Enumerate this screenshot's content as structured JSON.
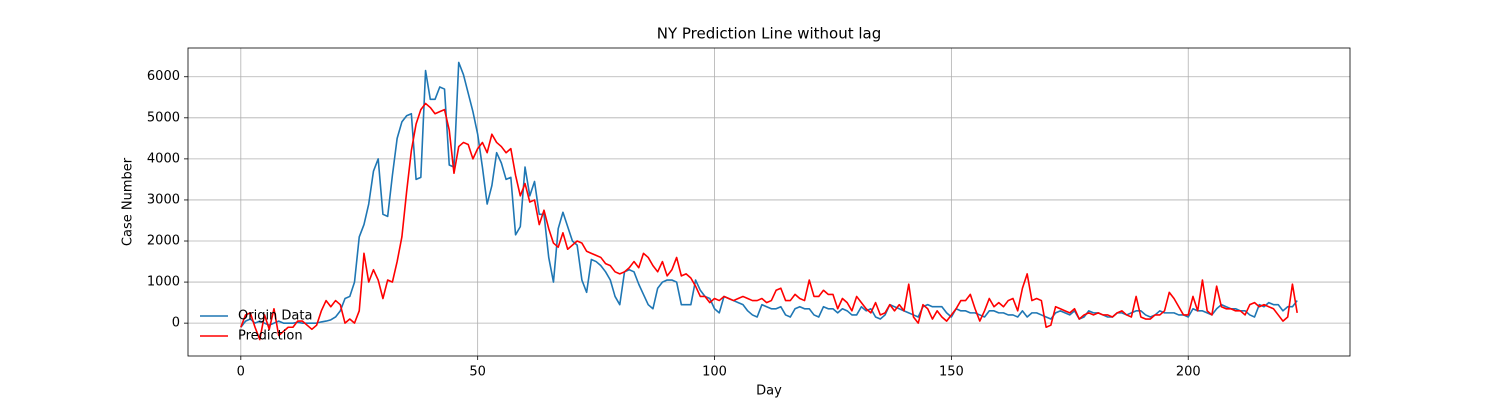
{
  "chart_data": {
    "type": "line",
    "title": "NY Prediction Line without lag",
    "x_label": "Day",
    "y_label": "Case Number",
    "x": [
      0,
      1,
      2,
      3,
      4,
      5,
      6,
      7,
      8,
      9,
      10,
      11,
      12,
      13,
      14,
      15,
      16,
      17,
      18,
      19,
      20,
      21,
      22,
      23,
      24,
      25,
      26,
      27,
      28,
      29,
      30,
      31,
      32,
      33,
      34,
      35,
      36,
      37,
      38,
      39,
      40,
      41,
      42,
      43,
      44,
      45,
      46,
      47,
      48,
      49,
      50,
      51,
      52,
      53,
      54,
      55,
      56,
      57,
      58,
      59,
      60,
      61,
      62,
      63,
      64,
      65,
      66,
      67,
      68,
      69,
      70,
      71,
      72,
      73,
      74,
      75,
      76,
      77,
      78,
      79,
      80,
      81,
      82,
      83,
      84,
      85,
      86,
      87,
      88,
      89,
      90,
      91,
      92,
      93,
      94,
      95,
      96,
      97,
      98,
      99,
      100,
      101,
      102,
      103,
      104,
      105,
      106,
      107,
      108,
      109,
      110,
      111,
      112,
      113,
      114,
      115,
      116,
      117,
      118,
      119,
      120,
      121,
      122,
      123,
      124,
      125,
      126,
      127,
      128,
      129,
      130,
      131,
      132,
      133,
      134,
      135,
      136,
      137,
      138,
      139,
      140,
      141,
      142,
      143,
      144,
      145,
      146,
      147,
      148,
      149,
      150,
      151,
      152,
      153,
      154,
      155,
      156,
      157,
      158,
      159,
      160,
      161,
      162,
      163,
      164,
      165,
      166,
      167,
      168,
      169,
      170,
      171,
      172,
      173,
      174,
      175,
      176,
      177,
      178,
      179,
      180,
      181,
      182,
      183,
      184,
      185,
      186,
      187,
      188,
      189,
      190,
      191,
      192,
      193,
      194,
      195,
      196,
      197,
      198,
      199,
      200,
      201,
      202,
      203,
      204,
      205,
      206,
      207,
      208,
      209,
      210,
      211,
      212,
      213,
      214,
      215,
      216,
      217,
      218,
      219,
      220,
      221,
      222,
      223
    ],
    "series": [
      {
        "name": "Origin Data",
        "color": "#1f77b4",
        "values": [
          -100,
          50,
          100,
          0,
          50,
          0,
          -50,
          0,
          50,
          0,
          0,
          0,
          20,
          0,
          0,
          0,
          0,
          30,
          50,
          80,
          150,
          300,
          600,
          650,
          1000,
          2100,
          2400,
          2900,
          3700,
          4000,
          2650,
          2600,
          3600,
          4500,
          4900,
          5050,
          5100,
          3500,
          3550,
          6150,
          5450,
          5450,
          5750,
          5700,
          3850,
          3800,
          6350,
          6050,
          5600,
          5150,
          4600,
          3800,
          2900,
          3350,
          4150,
          3900,
          3500,
          3550,
          2150,
          2350,
          3800,
          3100,
          3450,
          2650,
          2650,
          1600,
          1000,
          2300,
          2700,
          2350,
          2000,
          1900,
          1050,
          750,
          1550,
          1500,
          1400,
          1250,
          1050,
          650,
          450,
          1250,
          1300,
          1250,
          950,
          700,
          450,
          350,
          850,
          1000,
          1050,
          1050,
          1000,
          450,
          450,
          450,
          1050,
          800,
          650,
          600,
          350,
          250,
          650,
          600,
          550,
          500,
          450,
          300,
          200,
          150,
          450,
          400,
          350,
          350,
          400,
          200,
          150,
          350,
          400,
          350,
          350,
          200,
          150,
          400,
          350,
          350,
          250,
          350,
          300,
          200,
          200,
          400,
          300,
          350,
          150,
          100,
          200,
          450,
          400,
          350,
          300,
          250,
          200,
          150,
          400,
          450,
          400,
          400,
          400,
          250,
          150,
          350,
          300,
          300,
          250,
          250,
          200,
          150,
          300,
          300,
          250,
          250,
          200,
          200,
          150,
          300,
          150,
          250,
          250,
          200,
          150,
          100,
          250,
          300,
          250,
          200,
          300,
          100,
          150,
          300,
          250,
          250,
          200,
          150,
          150,
          250,
          250,
          200,
          250,
          300,
          300,
          200,
          150,
          200,
          300,
          250,
          250,
          250,
          200,
          200,
          150,
          350,
          300,
          300,
          250,
          200,
          350,
          450,
          400,
          350,
          350,
          300,
          300,
          200,
          150,
          450,
          400,
          500,
          450,
          450,
          300,
          400,
          400,
          550
        ]
      },
      {
        "name": "Prediction",
        "color": "#ff0000",
        "values": [
          -100,
          200,
          250,
          -100,
          -400,
          200,
          -150,
          350,
          -300,
          -200,
          -100,
          -100,
          50,
          50,
          -50,
          -150,
          -50,
          300,
          550,
          400,
          550,
          450,
          0,
          100,
          0,
          300,
          1700,
          1000,
          1300,
          1050,
          600,
          1050,
          1000,
          1500,
          2100,
          3200,
          4200,
          4850,
          5200,
          5350,
          5250,
          5100,
          5150,
          5200,
          4700,
          3650,
          4300,
          4400,
          4350,
          4000,
          4250,
          4400,
          4150,
          4600,
          4400,
          4300,
          4150,
          4250,
          3600,
          3100,
          3400,
          2950,
          3000,
          2400,
          2750,
          2300,
          1950,
          1850,
          2200,
          1800,
          1900,
          2000,
          1950,
          1750,
          1700,
          1650,
          1600,
          1450,
          1400,
          1250,
          1200,
          1250,
          1350,
          1500,
          1350,
          1700,
          1600,
          1400,
          1250,
          1500,
          1150,
          1300,
          1600,
          1150,
          1200,
          1100,
          900,
          650,
          650,
          500,
          600,
          550,
          650,
          600,
          550,
          600,
          650,
          600,
          550,
          550,
          600,
          500,
          550,
          800,
          850,
          550,
          550,
          700,
          600,
          550,
          1050,
          650,
          650,
          800,
          700,
          700,
          350,
          600,
          500,
          300,
          650,
          500,
          350,
          250,
          500,
          200,
          250,
          450,
          300,
          450,
          300,
          950,
          150,
          0,
          450,
          350,
          100,
          300,
          150,
          50,
          200,
          350,
          550,
          550,
          700,
          350,
          50,
          300,
          600,
          400,
          500,
          400,
          550,
          600,
          300,
          850,
          1200,
          550,
          600,
          550,
          -100,
          -50,
          400,
          350,
          300,
          250,
          350,
          100,
          200,
          250,
          200,
          250,
          200,
          200,
          150,
          250,
          300,
          200,
          150,
          650,
          150,
          100,
          100,
          200,
          200,
          300,
          750,
          600,
          400,
          200,
          200,
          650,
          300,
          1050,
          300,
          200,
          900,
          400,
          350,
          350,
          300,
          300,
          200,
          450,
          500,
          400,
          450,
          400,
          350,
          200,
          50,
          150,
          950,
          250
        ]
      }
    ],
    "xlim": [
      -11.15,
      234.15
    ],
    "ylim": [
      -800,
      6700
    ],
    "xticks": [
      0,
      50,
      100,
      150,
      200
    ],
    "yticks": [
      0,
      1000,
      2000,
      3000,
      4000,
      5000,
      6000
    ],
    "grid": true,
    "legend": "lower left"
  }
}
